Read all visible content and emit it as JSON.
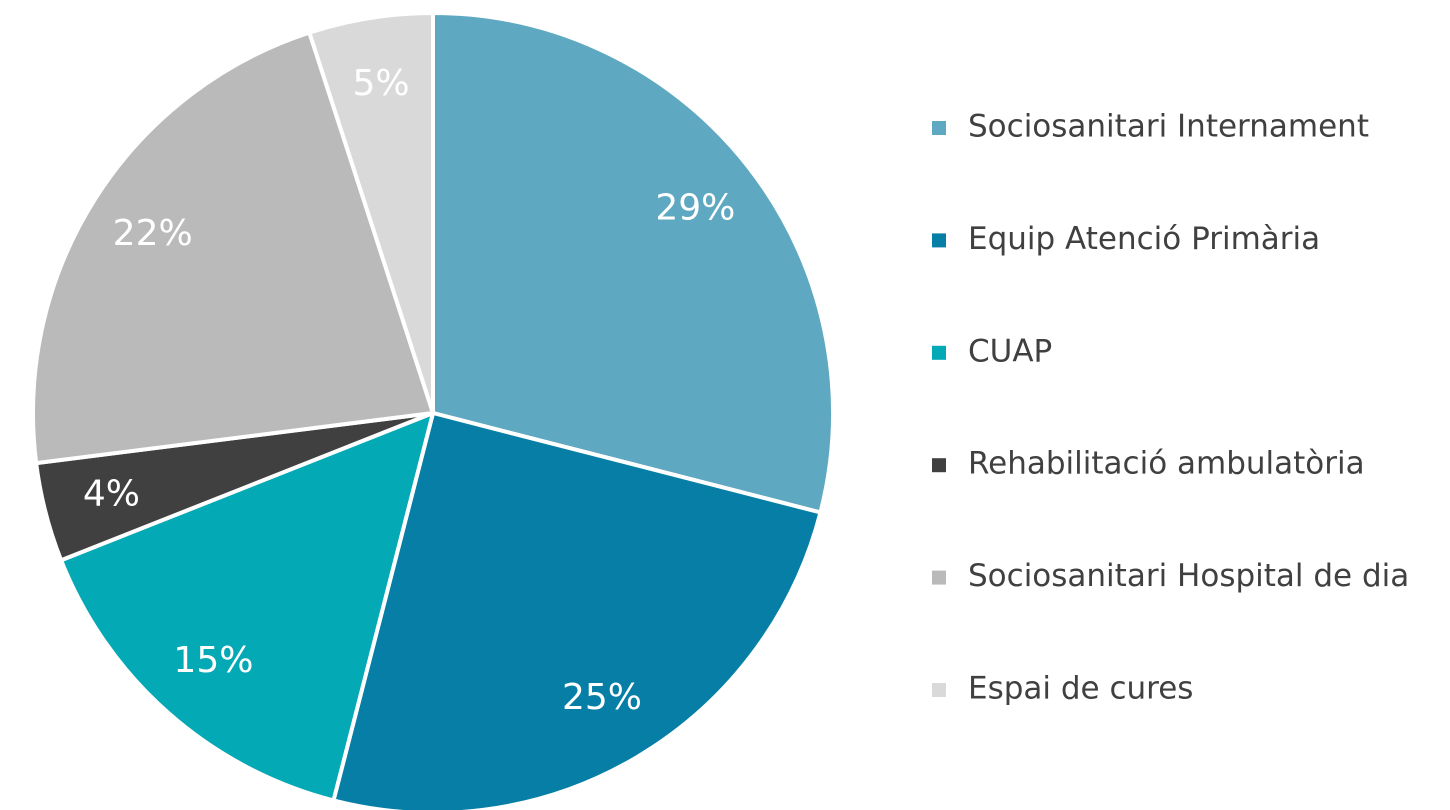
{
  "chart_data": {
    "type": "pie",
    "categories": [
      "Sociosanitari Internament",
      "Equip Atenció Primària",
      "CUAP",
      "Rehabilitació ambulatòria",
      "Sociosanitari Hospital de dia",
      "Espai de cures"
    ],
    "values": [
      29,
      25,
      15,
      4,
      22,
      5
    ],
    "value_labels": [
      "29%",
      "25%",
      "15%",
      "4%",
      "22%",
      "5%"
    ],
    "colors": [
      "#5fa8c1",
      "#077ea6",
      "#03a9b5",
      "#404040",
      "#bababa",
      "#d9d9d9"
    ],
    "legend": "right"
  }
}
